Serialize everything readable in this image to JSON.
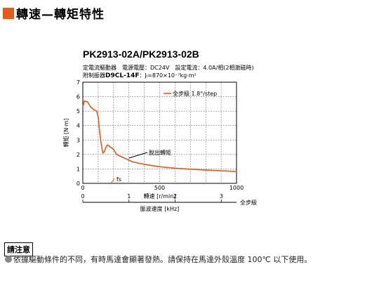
{
  "header": {
    "title": "轉速—轉矩特性",
    "accent_color": "#e8591e"
  },
  "model": "PK2913-02A/PK2913-02B",
  "spec": {
    "line1": "定電流驅動器　電源電壓：DC24V　設定電流：4.0A/相(2相激磁時)",
    "line2_label": "附制振器",
    "line2_model": "D9CL-14F",
    "line2_rest": "：Jₗ=870×10⁻⁷kg·m²"
  },
  "chart_data": {
    "type": "line",
    "title": "",
    "xlabel": "轉速 [r/min]",
    "ylabel": "轉矩 [N·m]",
    "xlim": [
      0,
      1000
    ],
    "ylim": [
      0,
      7
    ],
    "xticks": [
      0,
      500,
      1000
    ],
    "yticks": [
      0,
      1,
      2,
      3,
      4,
      5,
      6,
      7
    ],
    "grid": true,
    "legend_position": "top-right",
    "secondary_x": {
      "label": "脈波速度 [kHz]",
      "unit_label": "全步級",
      "ticks": [
        0,
        1,
        2,
        3
      ],
      "range": [
        0,
        3.33
      ]
    },
    "series": [
      {
        "name": "全步級 1.8°/step",
        "color": "#e8591e",
        "x": [
          0,
          10,
          30,
          50,
          70,
          90,
          100,
          110,
          120,
          130,
          140,
          150,
          160,
          170,
          180,
          190,
          200,
          220,
          250,
          280,
          320,
          360,
          400,
          450,
          500,
          600,
          700,
          800,
          900,
          1000
        ],
        "y": [
          5.3,
          5.7,
          5.65,
          5.3,
          5.1,
          5.0,
          4.6,
          3.5,
          2.7,
          2.1,
          2.2,
          2.5,
          2.65,
          2.6,
          2.5,
          2.45,
          2.35,
          2.0,
          1.85,
          1.7,
          1.5,
          1.4,
          1.32,
          1.23,
          1.15,
          1.05,
          0.98,
          0.92,
          0.87,
          0.82
        ]
      }
    ],
    "annotations": [
      {
        "text": "脫出轉矩"
      },
      {
        "text": "fs"
      }
    ]
  },
  "notice": {
    "label": "請注意",
    "text": "依據驅動條件的不同，有時馬達會顯著發熱。請保持在馬達外殼溫度 100℃ 以下使用。"
  }
}
